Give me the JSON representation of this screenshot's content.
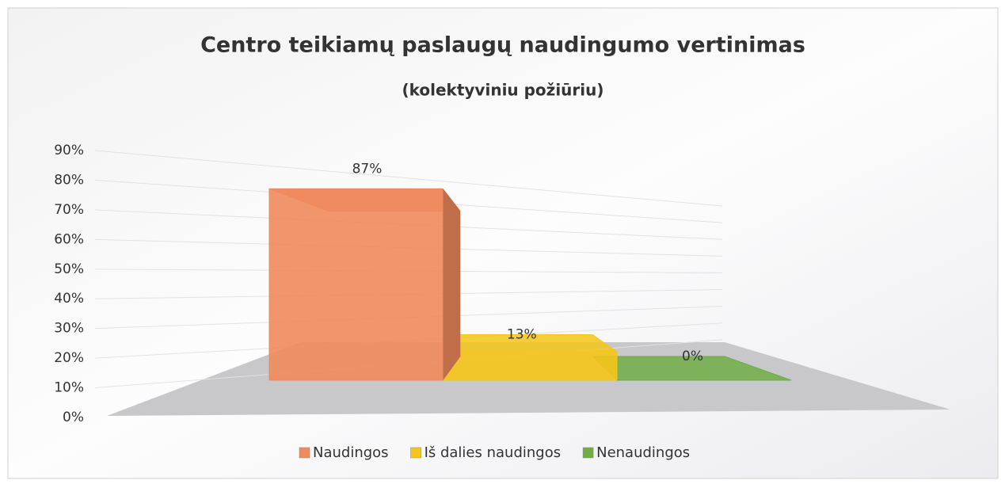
{
  "chart_data": {
    "type": "bar3d",
    "title": "Centro teikiamų paslaugų naudingumo vertinimas",
    "subtitle": "(kolektyviniu požiūriu)",
    "series": [
      {
        "name": "Naudingos",
        "color": "#f08a5d",
        "values": [
          87
        ],
        "value_labels": [
          "87%"
        ]
      },
      {
        "name": "Iš dalies naudingos",
        "color": "#f5c518",
        "values": [
          13
        ],
        "value_labels": [
          "13%"
        ]
      },
      {
        "name": "Nenaudingos",
        "color": "#70ad47",
        "values": [
          0
        ],
        "value_labels": [
          "0%"
        ]
      }
    ],
    "ylim": [
      0,
      90
    ],
    "yticks": [
      {
        "value": 0,
        "label": "0%"
      },
      {
        "value": 10,
        "label": "10%"
      },
      {
        "value": 20,
        "label": "20%"
      },
      {
        "value": 30,
        "label": "30%"
      },
      {
        "value": 40,
        "label": "40%"
      },
      {
        "value": 50,
        "label": "50%"
      },
      {
        "value": 60,
        "label": "60%"
      },
      {
        "value": 70,
        "label": "70%"
      },
      {
        "value": 80,
        "label": "80%"
      },
      {
        "value": 90,
        "label": "90%"
      }
    ],
    "grid": true,
    "legend": "bottom"
  }
}
